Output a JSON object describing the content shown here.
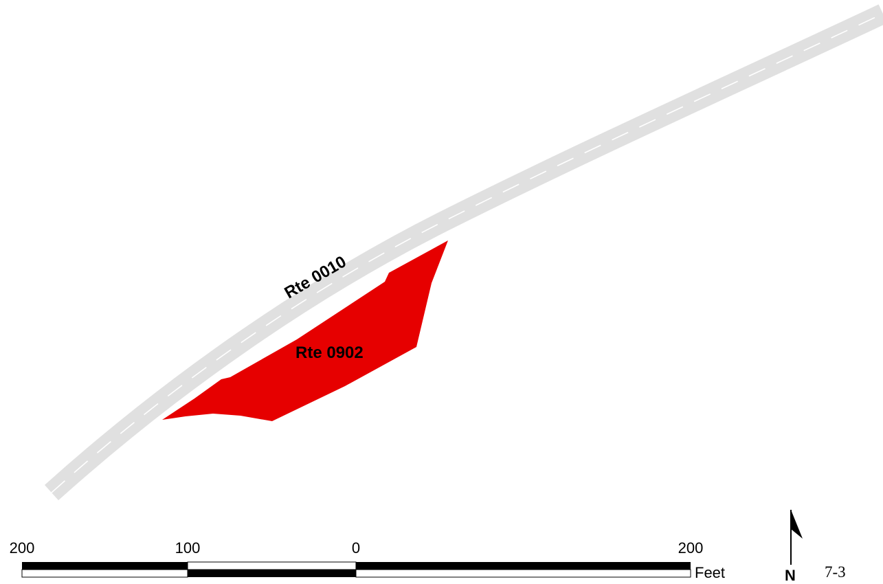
{
  "map": {
    "routes": [
      {
        "id": "rte-0010",
        "label": "Rte 0010",
        "type": "road"
      },
      {
        "id": "rte-0902",
        "label": "Rte 0902",
        "type": "parcel"
      }
    ],
    "colors": {
      "road": "#e0e0e0",
      "centerline": "#ffffff",
      "parcel": "#e60000",
      "ink": "#000000"
    }
  },
  "scale_bar": {
    "ticks": [
      "200",
      "100",
      "0",
      "200"
    ],
    "unit": "Feet"
  },
  "north_arrow": {
    "letter": "N",
    "icon": "north-arrow-icon"
  },
  "sheet": {
    "number": "7-3"
  }
}
